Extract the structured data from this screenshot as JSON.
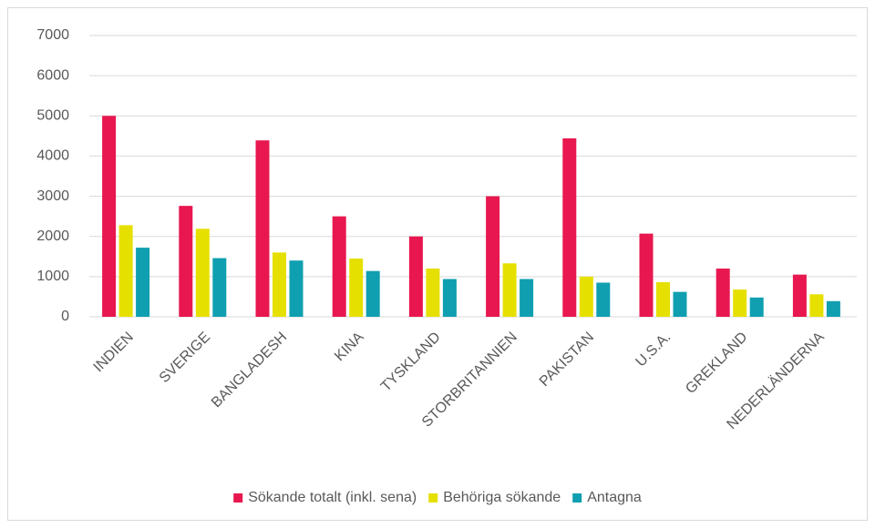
{
  "chart_data": {
    "type": "bar",
    "categories": [
      "INDIEN",
      "SVERIGE",
      "BANGLADESH",
      "KINA",
      "TYSKLAND",
      "STORBRITANNIEN",
      "PAKISTAN",
      "U.S.A.",
      "GREKLAND",
      "NEDERLÄNDERNA"
    ],
    "series": [
      {
        "name": "Sökande totalt (inkl. sena)",
        "color": "#e8174f",
        "values": [
          5000,
          2760,
          4390,
          2500,
          2000,
          3000,
          4440,
          2070,
          1200,
          1050
        ]
      },
      {
        "name": "Behöriga sökande",
        "color": "#e6e000",
        "values": [
          2280,
          2190,
          1600,
          1450,
          1200,
          1330,
          1000,
          860,
          680,
          560
        ]
      },
      {
        "name": "Antagna",
        "color": "#0f9fb0",
        "values": [
          1720,
          1460,
          1400,
          1140,
          940,
          940,
          850,
          620,
          480,
          390
        ]
      }
    ],
    "ylim": [
      0,
      7000
    ],
    "yticks": [
      0,
      1000,
      2000,
      3000,
      4000,
      5000,
      6000,
      7000
    ],
    "grid": true,
    "legend": "bottom"
  }
}
